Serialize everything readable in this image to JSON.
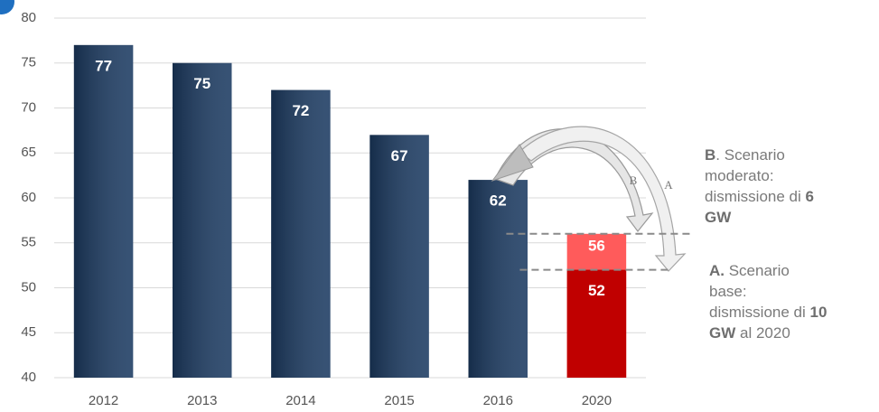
{
  "chart_data": {
    "type": "bar",
    "categories": [
      "2012",
      "2013",
      "2014",
      "2015",
      "2016",
      "2020"
    ],
    "series": [
      {
        "color": "#1c3b62",
        "values": [
          77,
          75,
          72,
          67,
          62,
          null
        ]
      },
      {
        "color": "#ff5b5b",
        "values": [
          null,
          null,
          null,
          null,
          null,
          56
        ]
      },
      {
        "color": "#c00000",
        "values": [
          null,
          null,
          null,
          null,
          null,
          52
        ]
      }
    ],
    "ylim": [
      40,
      80
    ],
    "yticks": [
      40,
      45,
      50,
      55,
      60,
      65,
      70,
      75,
      80
    ],
    "grid": true,
    "arrow_labels": [
      "B",
      "A"
    ],
    "annotations": [
      {
        "lines": [
          [
            {
              "text": "B",
              "bold": true
            },
            {
              "text": ". Scenario"
            }
          ],
          [
            {
              "text": "moderato:"
            }
          ],
          [
            {
              "text": "dismissione di "
            },
            {
              "text": "6",
              "bold": true
            }
          ],
          [
            {
              "text": "GW",
              "bold": true
            }
          ]
        ]
      },
      {
        "lines": [
          [
            {
              "text": "A.",
              "bold": true
            },
            {
              "text": " Scenario"
            }
          ],
          [
            {
              "text": "base:"
            }
          ],
          [
            {
              "text": "dismissione di "
            },
            {
              "text": "10",
              "bold": true
            }
          ],
          [
            {
              "text": "GW",
              "bold": true
            },
            {
              "text": " al 2020"
            }
          ]
        ]
      }
    ]
  }
}
